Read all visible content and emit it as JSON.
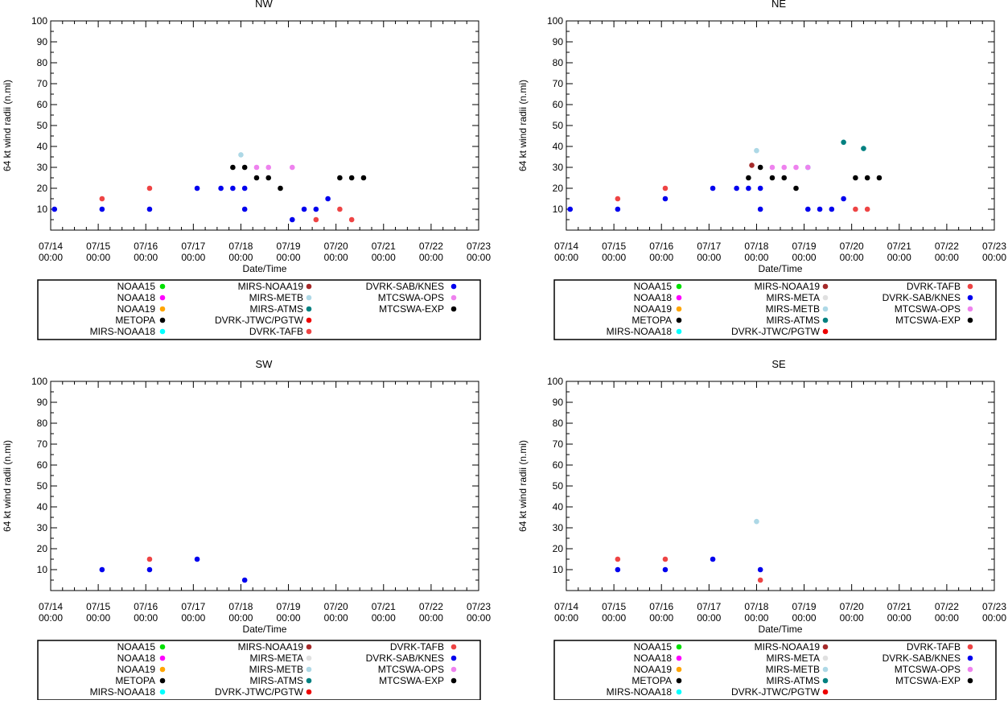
{
  "xlabel": "Date/Time",
  "ylabel": "64 kt wind radii (n.mi)",
  "ylim": [
    0,
    100
  ],
  "yticks": [
    10,
    20,
    30,
    40,
    50,
    60,
    70,
    80,
    90,
    100
  ],
  "xlim": [
    0,
    9
  ],
  "xticks": [
    {
      "date": "07/14",
      "time": "00:00"
    },
    {
      "date": "07/15",
      "time": "00:00"
    },
    {
      "date": "07/16",
      "time": "00:00"
    },
    {
      "date": "07/17",
      "time": "00:00"
    },
    {
      "date": "07/18",
      "time": "00:00"
    },
    {
      "date": "07/19",
      "time": "00:00"
    },
    {
      "date": "07/20",
      "time": "00:00"
    },
    {
      "date": "07/21",
      "time": "00:00"
    },
    {
      "date": "07/22",
      "time": "00:00"
    },
    {
      "date": "07/23",
      "time": "00:00"
    }
  ],
  "legend_colors": {
    "NOAA15": "#00e000",
    "NOAA18": "#ff00ff",
    "NOAA19": "#ffa500",
    "METOPA": "#000000",
    "MIRS-NOAA18": "#00ffff",
    "MIRS-NOAA19": "#a52a2a",
    "MIRS-META": "#e0e0e0",
    "MIRS-METB": "#add8e6",
    "MIRS-ATMS": "#008080",
    "DVRK-JTWC/PGTW": "#ee0000",
    "DVRK-TAFB": "#ee4444",
    "DVRK-SAB/KNES": "#0000ee",
    "MTCSWA-OPS": "#ee82ee",
    "MTCSWA-EXP": "#000000"
  },
  "chart_data": [
    {
      "type": "scatter",
      "title": "NW",
      "legend": [
        "NOAA15",
        "NOAA18",
        "NOAA19",
        "METOPA",
        "MIRS-NOAA18",
        "MIRS-NOAA19",
        "MIRS-METB",
        "MIRS-ATMS",
        "DVRK-JTWC/PGTW",
        "DVRK-TAFB",
        "DVRK-SAB/KNES",
        "MTCSWA-OPS",
        "MTCSWA-EXP"
      ],
      "series": [
        {
          "name": "DVRK-SAB/KNES",
          "x": [
            0.08,
            1.08,
            2.08,
            3.08,
            3.58,
            3.83,
            4.08,
            4.08,
            5.08,
            5.33,
            5.58,
            5.83
          ],
          "y": [
            10,
            10,
            10,
            20,
            20,
            20,
            20,
            10,
            5,
            10,
            10,
            15
          ]
        },
        {
          "name": "DVRK-TAFB",
          "x": [
            1.08,
            2.08,
            5.58,
            6.08,
            6.33
          ],
          "y": [
            15,
            20,
            5,
            10,
            5
          ]
        },
        {
          "name": "MIRS-METB",
          "x": [
            4.0
          ],
          "y": [
            36
          ]
        },
        {
          "name": "MTCSWA-OPS",
          "x": [
            4.33,
            4.58,
            5.08
          ],
          "y": [
            30,
            30,
            30
          ]
        },
        {
          "name": "MTCSWA-EXP",
          "x": [
            3.83,
            4.08,
            4.33,
            4.58,
            4.83,
            6.08,
            6.33,
            6.58
          ],
          "y": [
            30,
            30,
            25,
            25,
            20,
            25,
            25,
            25
          ]
        }
      ]
    },
    {
      "type": "scatter",
      "title": "NE",
      "legend": [
        "NOAA15",
        "NOAA18",
        "NOAA19",
        "METOPA",
        "MIRS-NOAA18",
        "MIRS-NOAA19",
        "MIRS-META",
        "MIRS-METB",
        "MIRS-ATMS",
        "DVRK-JTWC/PGTW",
        "DVRK-TAFB",
        "DVRK-SAB/KNES",
        "MTCSWA-OPS",
        "MTCSWA-EXP"
      ],
      "series": [
        {
          "name": "DVRK-SAB/KNES",
          "x": [
            0.08,
            1.08,
            2.08,
            3.08,
            3.58,
            3.83,
            4.08,
            4.08,
            5.08,
            5.33,
            5.58,
            5.83
          ],
          "y": [
            10,
            10,
            15,
            20,
            20,
            20,
            20,
            10,
            10,
            10,
            10,
            15
          ]
        },
        {
          "name": "DVRK-TAFB",
          "x": [
            1.08,
            2.08,
            6.08,
            6.33
          ],
          "y": [
            15,
            20,
            10,
            10
          ]
        },
        {
          "name": "MIRS-NOAA19",
          "x": [
            3.9
          ],
          "y": [
            31
          ]
        },
        {
          "name": "MIRS-METB",
          "x": [
            4.0
          ],
          "y": [
            38
          ]
        },
        {
          "name": "MIRS-ATMS",
          "x": [
            5.83,
            6.25
          ],
          "y": [
            42,
            39
          ]
        },
        {
          "name": "MIRS-NOAA18",
          "x": [
            5.08
          ],
          "y": [
            30
          ]
        },
        {
          "name": "MTCSWA-OPS",
          "x": [
            4.33,
            4.58,
            4.83,
            5.08
          ],
          "y": [
            30,
            30,
            30,
            30
          ]
        },
        {
          "name": "MTCSWA-EXP",
          "x": [
            3.83,
            4.08,
            4.33,
            4.58,
            4.83,
            6.08,
            6.33,
            6.58
          ],
          "y": [
            25,
            30,
            25,
            25,
            20,
            25,
            25,
            25
          ]
        }
      ]
    },
    {
      "type": "scatter",
      "title": "SW",
      "legend": [
        "NOAA15",
        "NOAA18",
        "NOAA19",
        "METOPA",
        "MIRS-NOAA18",
        "MIRS-NOAA19",
        "MIRS-META",
        "MIRS-METB",
        "MIRS-ATMS",
        "DVRK-JTWC/PGTW",
        "DVRK-TAFB",
        "DVRK-SAB/KNES",
        "MTCSWA-OPS",
        "MTCSWA-EXP"
      ],
      "series": [
        {
          "name": "DVRK-SAB/KNES",
          "x": [
            1.08,
            2.08,
            3.08,
            4.08
          ],
          "y": [
            10,
            10,
            15,
            5
          ]
        },
        {
          "name": "DVRK-TAFB",
          "x": [
            2.08
          ],
          "y": [
            15
          ]
        }
      ]
    },
    {
      "type": "scatter",
      "title": "SE",
      "legend": [
        "NOAA15",
        "NOAA18",
        "NOAA19",
        "METOPA",
        "MIRS-NOAA18",
        "MIRS-NOAA19",
        "MIRS-META",
        "MIRS-METB",
        "MIRS-ATMS",
        "DVRK-JTWC/PGTW",
        "DVRK-TAFB",
        "DVRK-SAB/KNES",
        "MTCSWA-OPS",
        "MTCSWA-EXP"
      ],
      "series": [
        {
          "name": "DVRK-SAB/KNES",
          "x": [
            1.08,
            2.08,
            3.08,
            4.08
          ],
          "y": [
            10,
            10,
            15,
            10
          ]
        },
        {
          "name": "DVRK-TAFB",
          "x": [
            1.08,
            2.08,
            4.08
          ],
          "y": [
            15,
            15,
            5
          ]
        },
        {
          "name": "MIRS-METB",
          "x": [
            4.0
          ],
          "y": [
            33
          ]
        }
      ]
    }
  ]
}
